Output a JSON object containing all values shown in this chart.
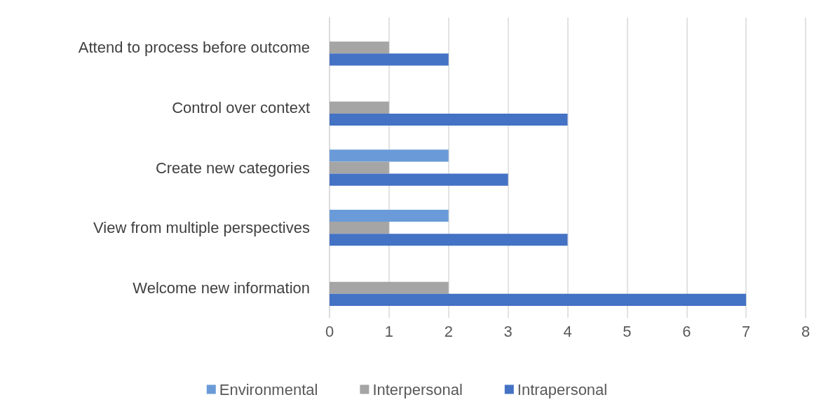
{
  "chart_data": {
    "type": "bar",
    "orientation": "horizontal",
    "categories": [
      "Attend to process before outcome",
      "Control over context",
      "Create new categories",
      "View from multiple perspectives",
      "Welcome new information"
    ],
    "series": [
      {
        "name": "Environmental",
        "color": "#6a9bd8",
        "values": [
          null,
          null,
          2,
          2,
          null
        ]
      },
      {
        "name": "Interpersonal",
        "color": "#a5a5a5",
        "values": [
          1,
          1,
          1,
          1,
          2
        ]
      },
      {
        "name": "Intrapersonal",
        "color": "#4472c4",
        "values": [
          2,
          4,
          3,
          4,
          7
        ]
      }
    ],
    "xlim": [
      0,
      8
    ],
    "xticks": [
      0,
      1,
      2,
      3,
      4,
      5,
      6,
      7,
      8
    ],
    "grid": "x",
    "legend": "bottom"
  }
}
